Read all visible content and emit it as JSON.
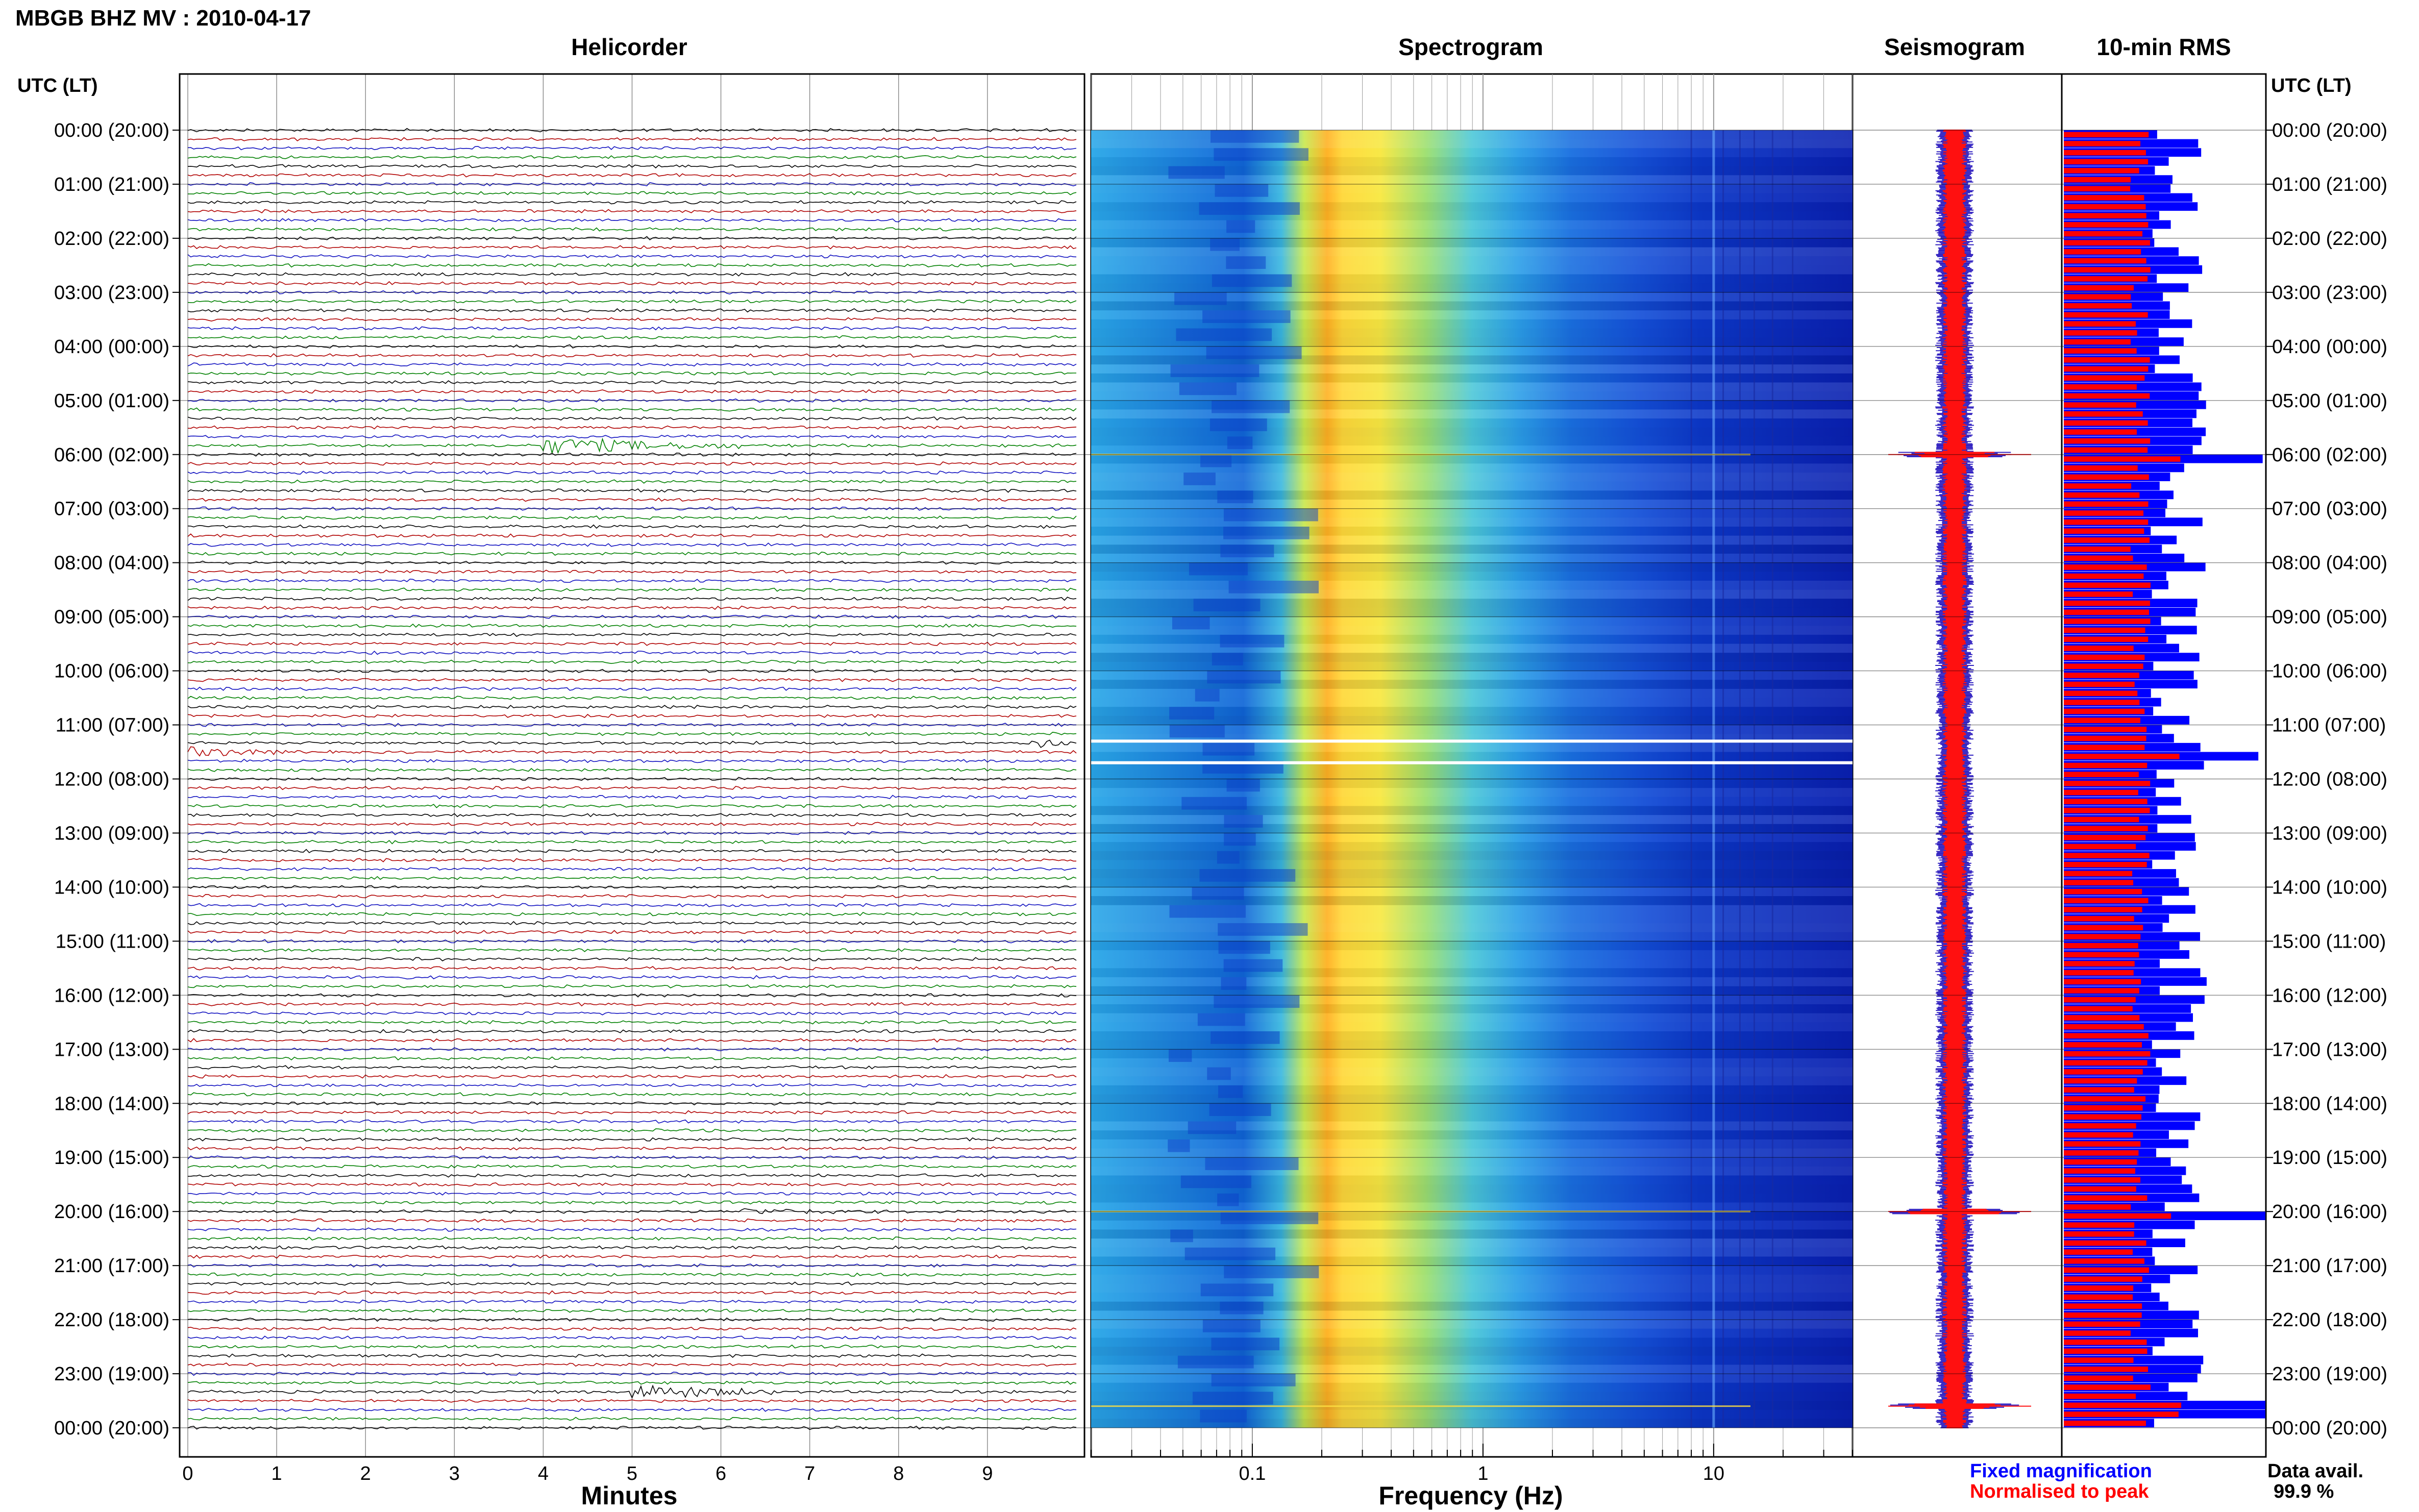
{
  "header": {
    "title": "MBGB BHZ MV : 2010-04-17"
  },
  "panels": {
    "helicorder": "Helicorder",
    "spectrogram": "Spectrogram",
    "seismogram": "Seismogram",
    "rms": "10-min RMS"
  },
  "axis": {
    "left_header": "UTC (LT)",
    "right_header": "UTC (LT)",
    "x_minutes_label": "Minutes",
    "x_frequency_label": "Frequency (Hz)",
    "minute_ticks": [
      "0",
      "1",
      "2",
      "3",
      "4",
      "5",
      "6",
      "7",
      "8",
      "9"
    ],
    "frequency_ticks": [
      "0.1",
      "1",
      "10"
    ]
  },
  "legend": {
    "fixed": "Fixed magnification",
    "normalised": "Normalised to peak",
    "fixed_color": "#0000ff",
    "normalised_color": "#ff0000"
  },
  "availability": {
    "label": "Data avail.",
    "value": "99.9 %"
  },
  "chart_data": {
    "type": "heatmap",
    "station": "MBGB BHZ MV",
    "date": "2010-04-17",
    "time_labels": [
      "00:00 (20:00)",
      "01:00 (21:00)",
      "02:00 (22:00)",
      "03:00 (23:00)",
      "04:00 (00:00)",
      "05:00 (01:00)",
      "06:00 (02:00)",
      "07:00 (03:00)",
      "08:00 (04:00)",
      "09:00 (05:00)",
      "10:00 (06:00)",
      "11:00 (07:00)",
      "12:00 (08:00)",
      "13:00 (09:00)",
      "14:00 (10:00)",
      "15:00 (11:00)",
      "16:00 (12:00)",
      "17:00 (13:00)",
      "18:00 (14:00)",
      "19:00 (15:00)",
      "20:00 (16:00)",
      "21:00 (17:00)",
      "22:00 (18:00)",
      "23:00 (19:00)",
      "00:00 (20:00)"
    ],
    "helicorder": {
      "xlim_minutes": [
        0,
        10
      ],
      "rows_per_hour": 6,
      "trace_colors": [
        "#000000",
        "#b00000",
        "#1010c0",
        "#008000"
      ],
      "events": [
        {
          "hour": 5.9,
          "minute_start": 4.0,
          "minute_end": 6.2,
          "color": "#008000",
          "amplitude": 14
        },
        {
          "hour": 11.5,
          "minute_start": 0.0,
          "minute_end": 1.1,
          "color": "#b00000",
          "amplitude": 8
        },
        {
          "hour": 11.3,
          "minute_start": 9.5,
          "minute_end": 10.0,
          "color": "#000000",
          "amplitude": 10
        },
        {
          "hour": 19.95,
          "minute_start": 6.2,
          "minute_end": 7.8,
          "color": "#000000",
          "amplitude": 5
        },
        {
          "hour": 23.4,
          "minute_start": 5.0,
          "minute_end": 6.6,
          "color": "#b00000",
          "amplitude": 14
        }
      ]
    },
    "spectrogram": {
      "freq_range_hz": [
        0.02,
        40
      ],
      "log_scale": true,
      "peak_band_hz": [
        0.2,
        0.4
      ],
      "noise_events_hours": [
        6.0,
        20.0,
        23.6
      ],
      "gaps_hours": [
        11.3,
        11.7
      ]
    },
    "seismogram": {
      "spikes_hours": [
        6.0,
        20.0,
        23.6
      ]
    },
    "rms_10min": {
      "series": [
        {
          "name": "Fixed magnification",
          "color": "#0000ff"
        },
        {
          "name": "Normalised to peak",
          "color": "#ff0000"
        }
      ],
      "peaks_hours": [
        6.0,
        23.6,
        20.0,
        11.5
      ]
    }
  }
}
